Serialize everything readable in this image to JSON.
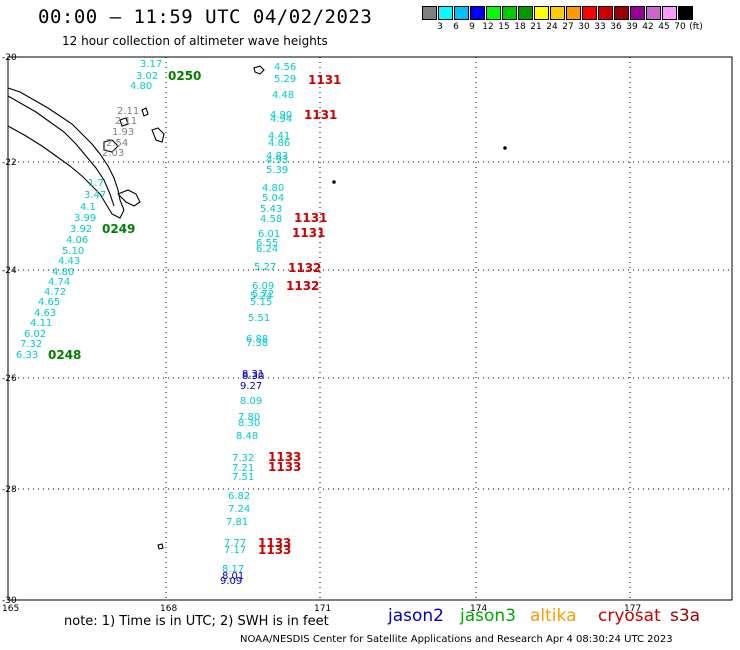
{
  "header": {
    "title": "00:00 — 11:59 UTC 04/02/2023",
    "subtitle": "12 hour collection of altimeter wave heights"
  },
  "colorbar": {
    "colors": [
      "#808080",
      "#00ffff",
      "#00bfff",
      "#0000ff",
      "#00ff00",
      "#00cc00",
      "#009900",
      "#ffff00",
      "#ffcc00",
      "#ff9900",
      "#ff0000",
      "#cc0000",
      "#990000",
      "#990099",
      "#cc66cc",
      "#ff99ff",
      "#000000"
    ],
    "labels": [
      "3",
      "6",
      "9",
      "12",
      "15",
      "18",
      "21",
      "24",
      "27",
      "30",
      "33",
      "36",
      "39",
      "42",
      "45",
      "70",
      "(ft)"
    ]
  },
  "map": {
    "lat_labels": [
      "-20",
      "-22",
      "-24",
      "-26",
      "-28",
      "-30"
    ],
    "lon_labels": [
      "165",
      "168",
      "171",
      "174",
      "177"
    ],
    "passes": [
      {
        "id": "0250",
        "color": "#008000"
      },
      {
        "id": "0249",
        "color": "#008000"
      },
      {
        "id": "0248",
        "color": "#008000"
      },
      {
        "id": "1131",
        "color": "#cc0000"
      },
      {
        "id": "1131",
        "color": "#cc0000"
      },
      {
        "id": "1131",
        "color": "#cc0000"
      },
      {
        "id": "1131",
        "color": "#cc0000"
      },
      {
        "id": "1132",
        "color": "#cc0000"
      },
      {
        "id": "1132",
        "color": "#cc0000"
      },
      {
        "id": "1133",
        "color": "#cc0000"
      },
      {
        "id": "1133",
        "color": "#cc0000"
      },
      {
        "id": "1133",
        "color": "#cc0000"
      },
      {
        "id": "1133",
        "color": "#cc0000"
      }
    ],
    "readings": [
      {
        "v": "3.17",
        "c": "#00cccc"
      },
      {
        "v": "3.02",
        "c": "#00cccc"
      },
      {
        "v": "4.80",
        "c": "#00cccc"
      },
      {
        "v": "2.11",
        "c": "#808080"
      },
      {
        "v": "2.11",
        "c": "#808080"
      },
      {
        "v": "1.93",
        "c": "#808080"
      },
      {
        "v": "2.54",
        "c": "#808080"
      },
      {
        "v": "2.03",
        "c": "#808080"
      },
      {
        "v": "1.7",
        "c": "#00cccc"
      },
      {
        "v": "3.47",
        "c": "#00cccc"
      },
      {
        "v": "4.1",
        "c": "#00cccc"
      },
      {
        "v": "3.99",
        "c": "#00cccc"
      },
      {
        "v": "3.92",
        "c": "#00cccc"
      },
      {
        "v": "4.06",
        "c": "#00cccc"
      },
      {
        "v": "5.10",
        "c": "#00cccc"
      },
      {
        "v": "4.43",
        "c": "#00cccc"
      },
      {
        "v": "4.80",
        "c": "#00cccc"
      },
      {
        "v": "4.74",
        "c": "#00cccc"
      },
      {
        "v": "4.72",
        "c": "#00cccc"
      },
      {
        "v": "4.65",
        "c": "#00cccc"
      },
      {
        "v": "4.63",
        "c": "#00cccc"
      },
      {
        "v": "4.11",
        "c": "#00cccc"
      },
      {
        "v": "6.02",
        "c": "#00cccc"
      },
      {
        "v": "7.32",
        "c": "#00cccc"
      },
      {
        "v": "6.33",
        "c": "#00cccc"
      },
      {
        "v": "4.56",
        "c": "#00cccc"
      },
      {
        "v": "5.29",
        "c": "#00cccc"
      },
      {
        "v": "4.48",
        "c": "#00cccc"
      },
      {
        "v": "4.90",
        "c": "#00cccc"
      },
      {
        "v": "4.94",
        "c": "#00cccc"
      },
      {
        "v": "4.41",
        "c": "#00cccc"
      },
      {
        "v": "4.86",
        "c": "#00cccc"
      },
      {
        "v": "4.83",
        "c": "#00cccc"
      },
      {
        "v": "4.93",
        "c": "#00cccc"
      },
      {
        "v": "5.39",
        "c": "#00cccc"
      },
      {
        "v": "4.80",
        "c": "#00cccc"
      },
      {
        "v": "5.04",
        "c": "#00cccc"
      },
      {
        "v": "5.43",
        "c": "#00cccc"
      },
      {
        "v": "4.58",
        "c": "#00cccc"
      },
      {
        "v": "6.01",
        "c": "#00cccc"
      },
      {
        "v": "6.55",
        "c": "#00cccc"
      },
      {
        "v": "6.24",
        "c": "#00cccc"
      },
      {
        "v": "5.27",
        "c": "#00cccc"
      },
      {
        "v": "6.09",
        "c": "#00cccc"
      },
      {
        "v": "5.72",
        "c": "#00cccc"
      },
      {
        "v": "5.24",
        "c": "#00cccc"
      },
      {
        "v": "5.15",
        "c": "#00cccc"
      },
      {
        "v": "5.51",
        "c": "#00cccc"
      },
      {
        "v": "6.88",
        "c": "#00cccc"
      },
      {
        "v": "7.38",
        "c": "#00cccc"
      },
      {
        "v": "8.31",
        "c": "#0000cc"
      },
      {
        "v": "8.30",
        "c": "#0000cc"
      },
      {
        "v": "9.27",
        "c": "#0000cc"
      },
      {
        "v": "8.09",
        "c": "#00cccc"
      },
      {
        "v": "7.80",
        "c": "#00cccc"
      },
      {
        "v": "8.30",
        "c": "#00cccc"
      },
      {
        "v": "8.48",
        "c": "#00cccc"
      },
      {
        "v": "7.32",
        "c": "#00cccc"
      },
      {
        "v": "7.21",
        "c": "#00cccc"
      },
      {
        "v": "7.51",
        "c": "#00cccc"
      },
      {
        "v": "6.82",
        "c": "#00cccc"
      },
      {
        "v": "7.24",
        "c": "#00cccc"
      },
      {
        "v": "7.81",
        "c": "#00cccc"
      },
      {
        "v": "7.77",
        "c": "#00cccc"
      },
      {
        "v": "7.17",
        "c": "#00cccc"
      },
      {
        "v": "8.17",
        "c": "#00cccc"
      },
      {
        "v": "8.01",
        "c": "#0000cc"
      },
      {
        "v": "9.09",
        "c": "#0000cc"
      }
    ]
  },
  "note": "note: 1) Time is in UTC; 2) SWH is in feet",
  "legend": [
    {
      "label": "jason2",
      "color": "#0000cc"
    },
    {
      "label": "jason3",
      "color": "#00aa00"
    },
    {
      "label": "altika",
      "color": "#ff9900"
    },
    {
      "label": "cryosat",
      "color": "#cc0000"
    },
    {
      "label": "s3a",
      "color": "#990000"
    }
  ],
  "credit": "NOAA/NESDIS Center for Satellite Applications and Research   Apr  4 08:30:24 UTC 2023"
}
